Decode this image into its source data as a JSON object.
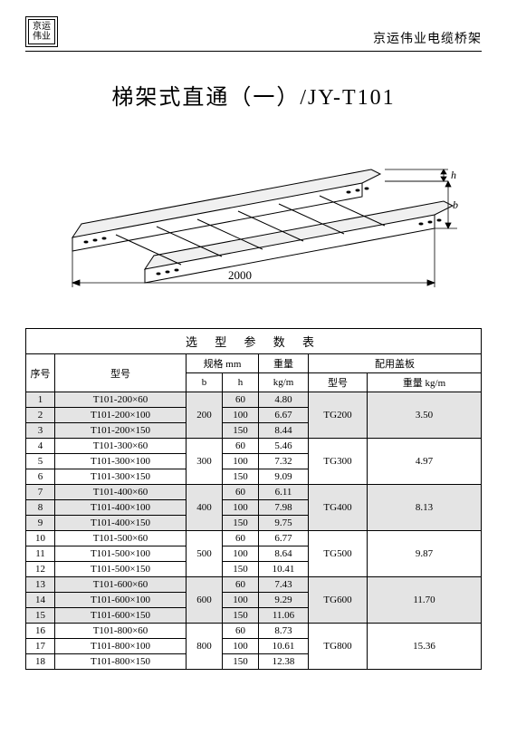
{
  "header": {
    "logo_line1": "京运",
    "logo_line2": "伟业",
    "company": "京运伟业电缆桥架"
  },
  "title": "梯架式直通（一）/JY-T101",
  "drawing": {
    "length_label": "2000",
    "dim_h": "h",
    "dim_b": "b"
  },
  "table": {
    "caption": "选 型 参 数 表",
    "head": {
      "idx": "序号",
      "model": "型号",
      "spec": "规格 mm",
      "weight": "重量",
      "cover": "配用盖板",
      "b": "b",
      "h": "h",
      "kgm": "kg/m",
      "cover_model": "型号",
      "cover_weight": "重量 kg/m"
    },
    "groups": [
      {
        "b": "200",
        "cover_model": "TG200",
        "cover_weight": "3.50",
        "shade": true,
        "rows": [
          {
            "idx": "1",
            "model": "T101-200×60",
            "h": "60",
            "w": "4.80"
          },
          {
            "idx": "2",
            "model": "T101-200×100",
            "h": "100",
            "w": "6.67"
          },
          {
            "idx": "3",
            "model": "T101-200×150",
            "h": "150",
            "w": "8.44"
          }
        ]
      },
      {
        "b": "300",
        "cover_model": "TG300",
        "cover_weight": "4.97",
        "shade": false,
        "rows": [
          {
            "idx": "4",
            "model": "T101-300×60",
            "h": "60",
            "w": "5.46"
          },
          {
            "idx": "5",
            "model": "T101-300×100",
            "h": "100",
            "w": "7.32"
          },
          {
            "idx": "6",
            "model": "T101-300×150",
            "h": "150",
            "w": "9.09"
          }
        ]
      },
      {
        "b": "400",
        "cover_model": "TG400",
        "cover_weight": "8.13",
        "shade": true,
        "rows": [
          {
            "idx": "7",
            "model": "T101-400×60",
            "h": "60",
            "w": "6.11"
          },
          {
            "idx": "8",
            "model": "T101-400×100",
            "h": "100",
            "w": "7.98"
          },
          {
            "idx": "9",
            "model": "T101-400×150",
            "h": "150",
            "w": "9.75"
          }
        ]
      },
      {
        "b": "500",
        "cover_model": "TG500",
        "cover_weight": "9.87",
        "shade": false,
        "rows": [
          {
            "idx": "10",
            "model": "T101-500×60",
            "h": "60",
            "w": "6.77"
          },
          {
            "idx": "11",
            "model": "T101-500×100",
            "h": "100",
            "w": "8.64"
          },
          {
            "idx": "12",
            "model": "T101-500×150",
            "h": "150",
            "w": "10.41"
          }
        ]
      },
      {
        "b": "600",
        "cover_model": "TG600",
        "cover_weight": "11.70",
        "shade": true,
        "rows": [
          {
            "idx": "13",
            "model": "T101-600×60",
            "h": "60",
            "w": "7.43"
          },
          {
            "idx": "14",
            "model": "T101-600×100",
            "h": "100",
            "w": "9.29"
          },
          {
            "idx": "15",
            "model": "T101-600×150",
            "h": "150",
            "w": "11.06"
          }
        ]
      },
      {
        "b": "800",
        "cover_model": "TG800",
        "cover_weight": "15.36",
        "shade": false,
        "rows": [
          {
            "idx": "16",
            "model": "T101-800×60",
            "h": "60",
            "w": "8.73"
          },
          {
            "idx": "17",
            "model": "T101-800×100",
            "h": "100",
            "w": "10.61"
          },
          {
            "idx": "18",
            "model": "T101-800×150",
            "h": "150",
            "w": "12.38"
          }
        ]
      }
    ]
  }
}
